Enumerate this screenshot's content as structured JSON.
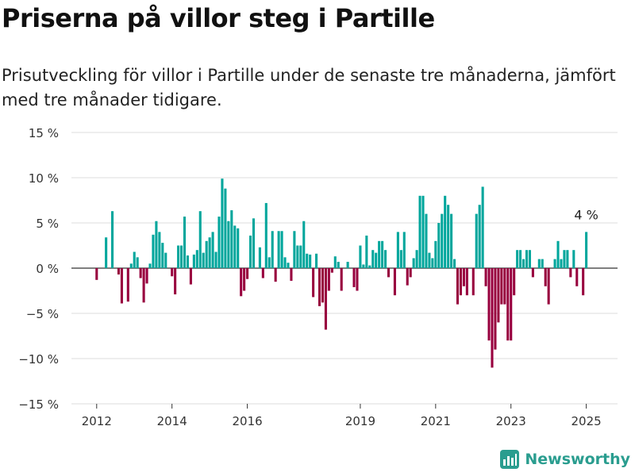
{
  "title": "Priserna på villor steg i Partille",
  "subtitle": "Prisutveckling för villor i Partille under de senaste tre månaderna, jämfört med tre månader tidigare.",
  "brand": {
    "name": "Newsworthy"
  },
  "colors": {
    "positive": "#00a69c",
    "negative": "#98003e",
    "grid": "#dddddd",
    "axis_text": "#333333",
    "brand": "#2a9d8f"
  },
  "chart_data": {
    "type": "bar",
    "ylim": [
      -15,
      15
    ],
    "y_ticks": [
      15,
      10,
      5,
      0,
      -5,
      -10,
      -15
    ],
    "y_tick_labels": [
      "15 %",
      "10 %",
      "5 %",
      "0 %",
      "−5 %",
      "−10 %",
      "−15 %"
    ],
    "x_range": [
      2011.33,
      2025.83
    ],
    "x_ticks": [
      2012,
      2014,
      2016,
      2019,
      2021,
      2023,
      2025
    ],
    "x_tick_labels": [
      "2012",
      "2014",
      "2016",
      "2019",
      "2021",
      "2023",
      "2025"
    ],
    "last_label": "4 %",
    "start": 2012.0,
    "step": 0.0833333,
    "values": [
      -1.3,
      0,
      0,
      3.4,
      0,
      6.3,
      0,
      -0.7,
      -3.9,
      0,
      -3.7,
      0.5,
      1.8,
      1.2,
      -1.1,
      -3.8,
      -1.7,
      0.5,
      3.7,
      5.2,
      4.0,
      2.8,
      1.7,
      0,
      -0.9,
      -2.9,
      2.5,
      2.5,
      5.7,
      1.4,
      -1.8,
      1.5,
      2.0,
      6.3,
      1.7,
      3.0,
      3.4,
      4.0,
      1.8,
      5.7,
      9.9,
      8.8,
      5.2,
      6.4,
      4.7,
      4.4,
      -3.1,
      -2.5,
      -1.2,
      3.6,
      5.5,
      0,
      2.3,
      -1.1,
      7.2,
      1.2,
      4.1,
      -1.5,
      4.1,
      4.1,
      1.2,
      0.6,
      -1.4,
      4.1,
      2.5,
      2.5,
      5.2,
      1.6,
      1.5,
      -3.2,
      1.6,
      -4.2,
      -3.8,
      -6.8,
      -2.5,
      -0.5,
      1.3,
      0.7,
      -2.5,
      0,
      0.7,
      0,
      -2.1,
      -2.5,
      2.5,
      0.4,
      3.6,
      0.3,
      2.0,
      1.7,
      3.0,
      3.0,
      2.0,
      -1.0,
      0,
      -3.0,
      4.0,
      2.0,
      4.0,
      -1.9,
      -1.0,
      1.1,
      2.0,
      8.0,
      8.0,
      6.0,
      1.7,
      1.1,
      3.0,
      5.0,
      6.0,
      8.0,
      7.0,
      6.0,
      1.0,
      -4.0,
      -3.0,
      -2.0,
      -3.0,
      0,
      -3.0,
      6.0,
      7.0,
      9.0,
      -2.0,
      -8.0,
      -11.0,
      -9.0,
      -6.0,
      -4.0,
      -4.0,
      -8.0,
      -8.0,
      -3.0,
      2.0,
      2.0,
      1.0,
      2.0,
      2.0,
      -1.0,
      0,
      1.0,
      1.0,
      -2.0,
      -4.0,
      0,
      1.0,
      3.0,
      1.0,
      2.0,
      2.0,
      -1.0,
      2.0,
      -2.0,
      0,
      -3.0,
      4.0
    ]
  }
}
